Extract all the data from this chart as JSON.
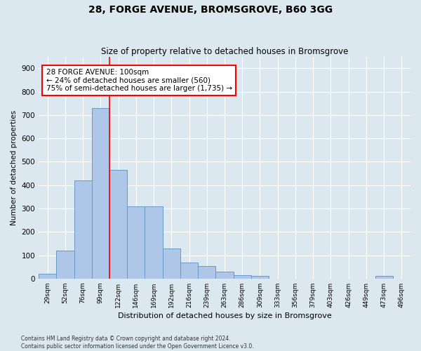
{
  "title1": "28, FORGE AVENUE, BROMSGROVE, B60 3GG",
  "title2": "Size of property relative to detached houses in Bromsgrove",
  "xlabel": "Distribution of detached houses by size in Bromsgrove",
  "ylabel": "Number of detached properties",
  "bin_labels": [
    "29sqm",
    "52sqm",
    "76sqm",
    "99sqm",
    "122sqm",
    "146sqm",
    "169sqm",
    "192sqm",
    "216sqm",
    "239sqm",
    "263sqm",
    "286sqm",
    "309sqm",
    "333sqm",
    "356sqm",
    "379sqm",
    "403sqm",
    "426sqm",
    "449sqm",
    "473sqm",
    "496sqm"
  ],
  "bar_heights": [
    20,
    120,
    420,
    730,
    465,
    310,
    310,
    130,
    70,
    55,
    30,
    15,
    10,
    0,
    0,
    0,
    0,
    0,
    0,
    10,
    0
  ],
  "bar_color": "#aec6e8",
  "bar_edge_color": "#6899c4",
  "annotation_line1": "28 FORGE AVENUE: 100sqm",
  "annotation_line2": "← 24% of detached houses are smaller (560)",
  "annotation_line3": "75% of semi-detached houses are larger (1,735) →",
  "ylim": [
    0,
    950
  ],
  "yticks": [
    0,
    100,
    200,
    300,
    400,
    500,
    600,
    700,
    800,
    900
  ],
  "footer1": "Contains HM Land Registry data © Crown copyright and database right 2024.",
  "footer2": "Contains public sector information licensed under the Open Government Licence v3.0.",
  "fig_bg_color": "#dce8f0",
  "plot_bg_color": "#dce8f0"
}
